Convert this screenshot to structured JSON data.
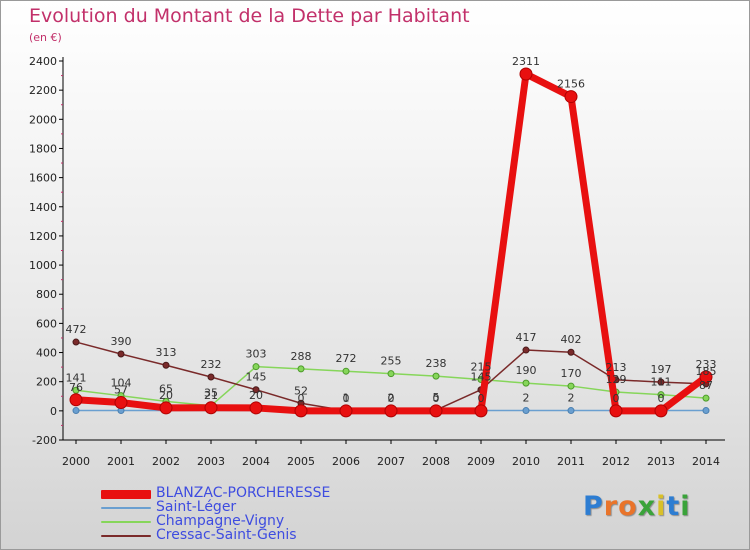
{
  "title": "Evolution du Montant de la Dette par Habitant",
  "unit": "(en €)",
  "logo": {
    "letters": [
      "P",
      "r",
      "o",
      "x",
      "i",
      "t",
      "i"
    ],
    "colors": [
      "#2d7dd2",
      "#e9742a",
      "#e9742a",
      "#3aa33a",
      "#d9c028",
      "#2d7dd2",
      "#3aa33a"
    ]
  },
  "chart_data": {
    "type": "line",
    "title": "Evolution du Montant de la Dette par Habitant",
    "ylabel": "(en €)",
    "xlabel": "",
    "x": [
      "2000",
      "2001",
      "2002",
      "2003",
      "2004",
      "2005",
      "2006",
      "2007",
      "2008",
      "2009",
      "2010",
      "2011",
      "2012",
      "2013",
      "2014"
    ],
    "ylim": [
      -200,
      2400
    ],
    "yticks": [
      "-200",
      "0",
      "200",
      "400",
      "600",
      "800",
      "1000",
      "1200",
      "1400",
      "1600",
      "1800",
      "2000",
      "2200",
      "2400"
    ],
    "grid": false,
    "legend": "bottom-left",
    "series": [
      {
        "name": "BLANZAC-PORCHERESSE",
        "color": "#e81010",
        "values": [
          76,
          57,
          20,
          21,
          20,
          0,
          0,
          0,
          0,
          0,
          2311,
          2156,
          0,
          0,
          233
        ],
        "labels": [
          "76",
          "57",
          "20",
          "21",
          "20",
          "0",
          "0",
          "0",
          "0",
          "0",
          "2311",
          "2156",
          "0",
          "0",
          "233"
        ]
      },
      {
        "name": "Saint-Léger",
        "color": "#6a9fd0",
        "values": [
          2,
          2,
          2,
          2,
          2,
          2,
          2,
          2,
          2,
          2,
          2,
          2,
          2,
          2,
          2
        ],
        "labels": [
          "",
          "",
          "",
          "",
          "",
          "",
          "",
          "",
          "",
          "",
          "2",
          "2",
          "",
          "",
          ""
        ]
      },
      {
        "name": "Champagne-Vigny",
        "color": "#86d65a",
        "values": [
          141,
          104,
          65,
          35,
          303,
          288,
          272,
          255,
          238,
          215,
          190,
          170,
          129,
          111,
          87
        ],
        "labels": [
          "141",
          "104",
          "65",
          "35",
          "303",
          "288",
          "272",
          "255",
          "238",
          "215",
          "190",
          "170",
          "129",
          "111",
          "87"
        ]
      },
      {
        "name": "Cressac-Saint-Genis",
        "color": "#7a2a2a",
        "values": [
          472,
          390,
          313,
          232,
          145,
          52,
          1,
          2,
          5,
          145,
          417,
          402,
          213,
          197,
          185
        ],
        "labels": [
          "472",
          "390",
          "313",
          "232",
          "145",
          "52",
          "1",
          "2",
          "5",
          "145",
          "417",
          "402",
          "213",
          "197",
          "185"
        ]
      }
    ]
  }
}
